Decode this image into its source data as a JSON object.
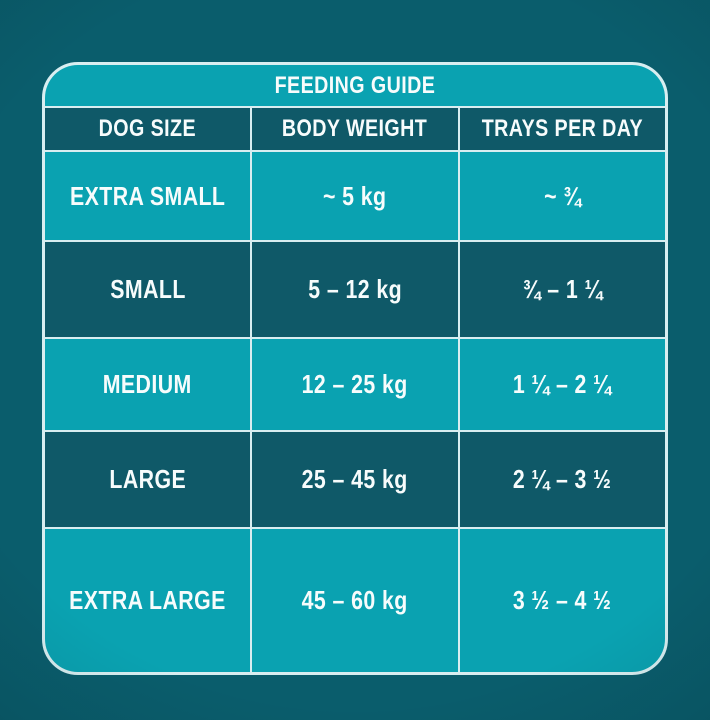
{
  "colors": {
    "page_background": "#0a5d6c",
    "accent_turquoise": "#0aa2b1",
    "dark_teal": "#0f5968",
    "divider": "#d8eef1",
    "text": "#f7fcfc"
  },
  "chart_data": {
    "type": "table",
    "title": "FEEDING GUIDE",
    "columns": [
      "DOG SIZE",
      "BODY WEIGHT",
      "TRAYS PER DAY"
    ],
    "rows": [
      [
        "EXTRA SMALL",
        "~ 5 kg",
        "~ ¾"
      ],
      [
        "SMALL",
        "5 – 12 kg",
        "¾ – 1 ¼"
      ],
      [
        "MEDIUM",
        "12 – 25 kg",
        "1 ¼ – 2 ¼"
      ],
      [
        "LARGE",
        "25 – 45 kg",
        "2 ¼ – 3 ½"
      ],
      [
        "EXTRA LARGE",
        "45 – 60 kg",
        "3 ½ – 4 ½"
      ]
    ],
    "layout": {
      "legend": "none",
      "grid": "on",
      "row_striping": [
        "light",
        "dark",
        "light",
        "dark",
        "light"
      ]
    }
  }
}
